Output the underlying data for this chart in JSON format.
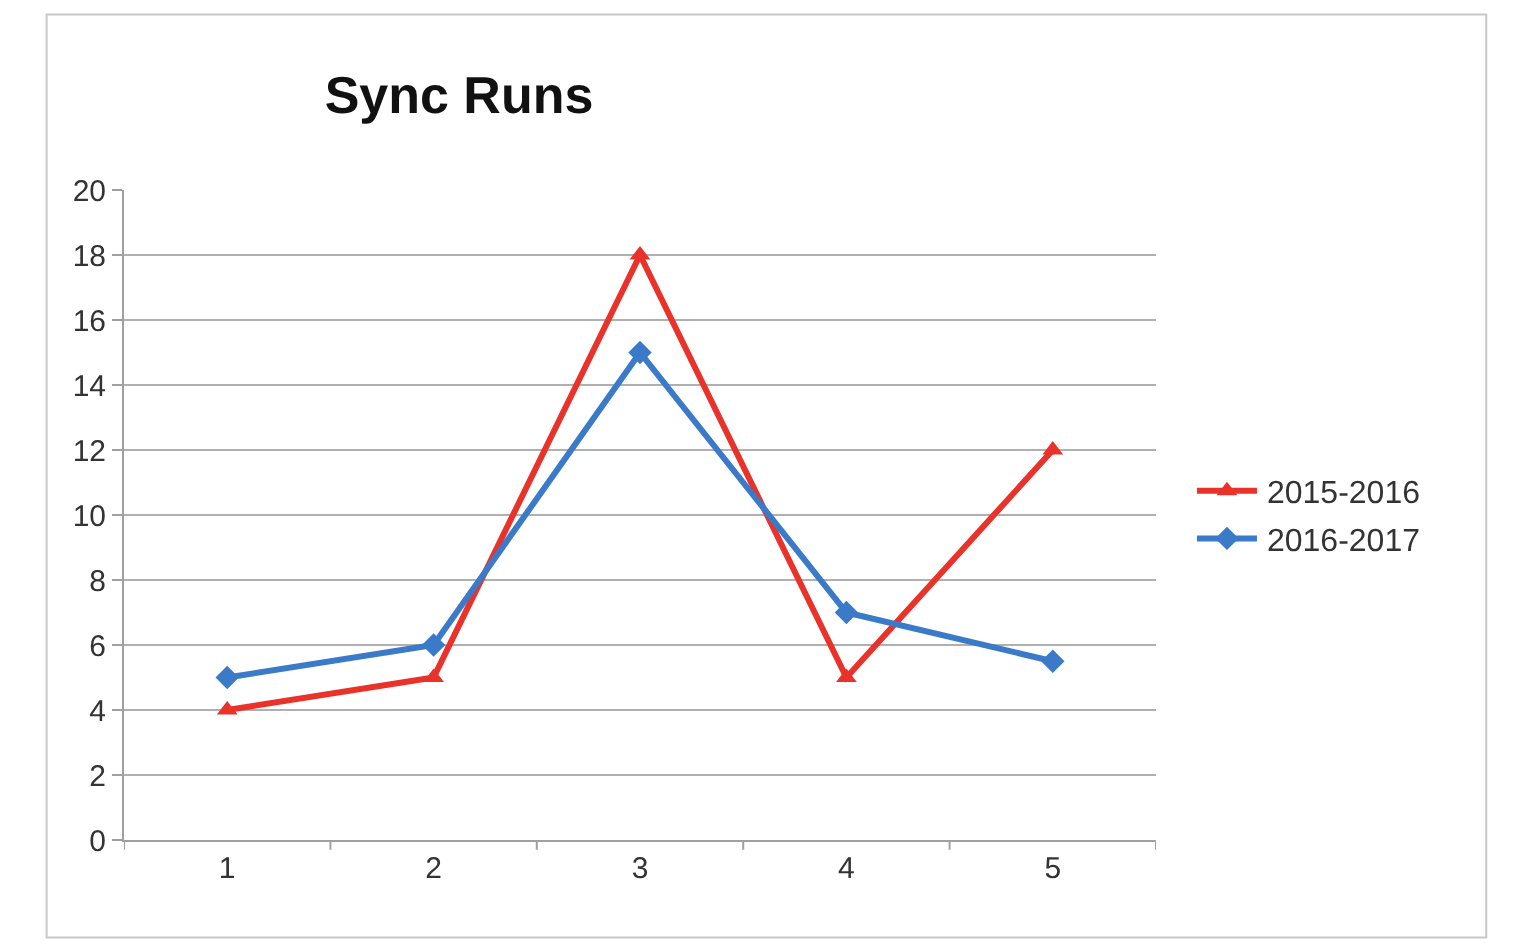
{
  "chart_data": {
    "type": "line",
    "title": "Sync Runs",
    "categories": [
      "1",
      "2",
      "3",
      "4",
      "5"
    ],
    "series": [
      {
        "name": "2015-2016",
        "color": "#e8322a",
        "marker": "triangle",
        "values": [
          4,
          5,
          18,
          5,
          12
        ]
      },
      {
        "name": "2016-2017",
        "color": "#3a7ac8",
        "marker": "diamond",
        "values": [
          5,
          6,
          15,
          7,
          5.5
        ]
      }
    ],
    "ylim": [
      0,
      20
    ],
    "yticks": [
      0,
      2,
      4,
      6,
      8,
      10,
      12,
      14,
      16,
      18,
      20
    ],
    "grid": "y",
    "legend": "right",
    "line_style": "solid"
  }
}
